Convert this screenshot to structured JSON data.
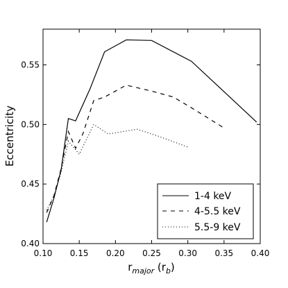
{
  "chart_data": {
    "type": "line",
    "title": "",
    "xlabel": "r",
    "xlabel_sub": "major",
    "xlabel_unit_open": " (r",
    "xlabel_unit_sub": "b",
    "xlabel_unit_close": ")",
    "ylabel": "Eccentricity",
    "xlim": [
      0.1,
      0.4
    ],
    "ylim": [
      0.4,
      0.58
    ],
    "xticks": [
      0.1,
      0.15,
      0.2,
      0.25,
      0.3,
      0.35,
      0.4
    ],
    "xtick_labels": [
      "0.10",
      "0.15",
      "0.20",
      "0.25",
      "0.30",
      "0.35",
      "0.40"
    ],
    "yticks": [
      0.4,
      0.45,
      0.5,
      0.55
    ],
    "ytick_labels": [
      "0.40",
      "0.45",
      "0.50",
      "0.55"
    ],
    "grid": false,
    "legend_position": "lower-right",
    "series": [
      {
        "name": "1-4 keV",
        "style": "solid",
        "color": "#000000",
        "x": [
          0.105,
          0.115,
          0.125,
          0.135,
          0.145,
          0.165,
          0.185,
          0.215,
          0.25,
          0.305,
          0.395
        ],
        "y": [
          0.418,
          0.438,
          0.462,
          0.505,
          0.503,
          0.53,
          0.561,
          0.571,
          0.5705,
          0.553,
          0.502
        ]
      },
      {
        "name": "4-5.5 keV",
        "style": "dashed",
        "color": "#000000",
        "x": [
          0.105,
          0.115,
          0.125,
          0.135,
          0.145,
          0.155,
          0.17,
          0.185,
          0.215,
          0.25,
          0.28,
          0.305,
          0.35
        ],
        "y": [
          0.426,
          0.44,
          0.463,
          0.494,
          0.48,
          0.492,
          0.52,
          0.523,
          0.533,
          0.528,
          0.523,
          0.514,
          0.497
        ]
      },
      {
        "name": "5.5-9 keV",
        "style": "dotted",
        "color": "#000000",
        "x": [
          0.105,
          0.115,
          0.125,
          0.135,
          0.15,
          0.17,
          0.19,
          0.23,
          0.26,
          0.3
        ],
        "y": [
          0.428,
          0.44,
          0.46,
          0.486,
          0.475,
          0.5,
          0.492,
          0.496,
          0.49,
          0.481
        ]
      }
    ]
  }
}
